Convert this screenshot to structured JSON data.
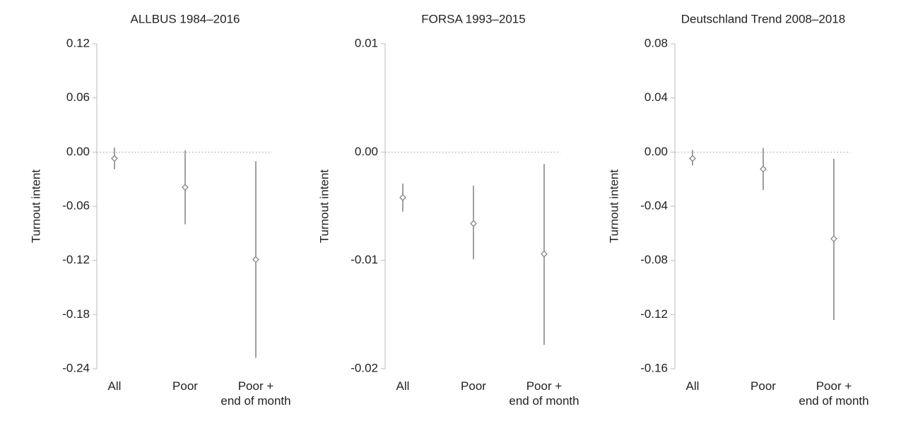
{
  "chart_data": [
    {
      "type": "errorbar",
      "title": "ALLBUS 1984–2016",
      "y_label": "Turnout intent",
      "categories": [
        "All",
        "Poor",
        "Poor +\nend of month"
      ],
      "values": [
        -0.007,
        -0.039,
        -0.119
      ],
      "lower": [
        -0.019,
        -0.08,
        -0.228
      ],
      "upper": [
        0.005,
        0.002,
        -0.01
      ],
      "color": "#808080",
      "ylim": [
        -0.24,
        0.12
      ],
      "yticks": [
        -0.24,
        -0.18,
        -0.12,
        -0.06,
        {
          "value": 0,
          "label": "0.00"
        },
        0.06,
        0.12
      ]
    },
    {
      "type": "errorbar",
      "title": "FORSA 1993–2015",
      "y_label": "Turnout intent",
      "categories": [
        "All",
        "Poor",
        "Poor +\nend of month"
      ],
      "values": [
        -0.0042,
        -0.0066,
        -0.0094
      ],
      "lower": [
        -0.0055,
        -0.0099,
        -0.0178
      ],
      "upper": [
        -0.0029,
        -0.0031,
        -0.0011
      ],
      "color": "#808080",
      "ylim": [
        -0.02,
        0.01
      ],
      "yticks": [
        -0.02,
        -0.01,
        {
          "value": 0,
          "label": "0.00"
        },
        0.01
      ]
    },
    {
      "type": "errorbar",
      "title": "Deutschland Trend 2008–2018",
      "y_label": "Turnout intent",
      "categories": [
        "All",
        "Poor",
        "Poor +\nend of month"
      ],
      "values": [
        -0.0047,
        -0.0125,
        -0.064
      ],
      "lower": [
        -0.0099,
        -0.028,
        -0.124
      ],
      "upper": [
        0.0016,
        0.003,
        -0.005
      ],
      "color": "#808080",
      "ylim": [
        -0.16,
        0.08
      ],
      "yticks": [
        -0.16,
        -0.12,
        -0.08,
        -0.04,
        {
          "value": 0,
          "label": "0.00"
        },
        0.04,
        0.08
      ]
    }
  ]
}
